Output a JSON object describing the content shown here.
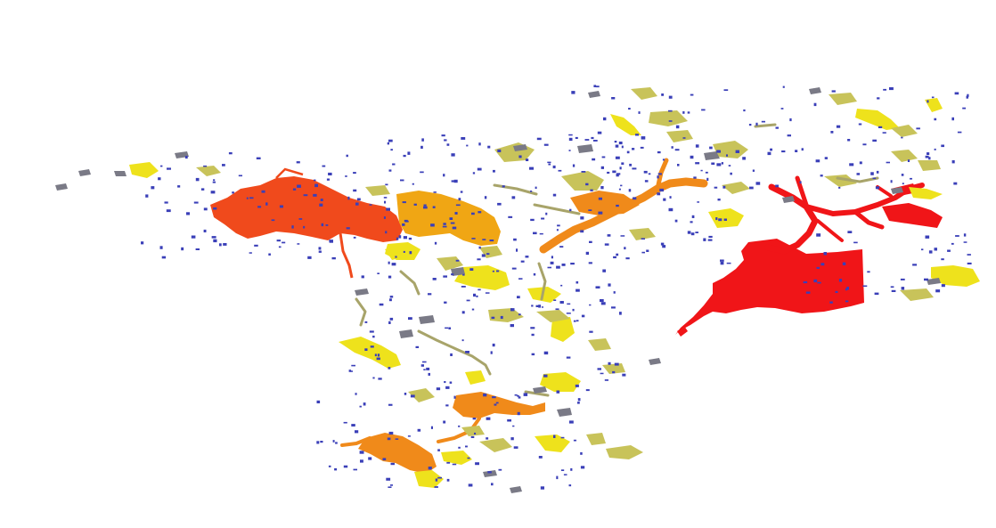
{
  "map": {
    "legend_colors": {
      "largest": "#f01518",
      "large": "#f04a1c",
      "medium_large": "#f08a1a",
      "medium": "#f0a614",
      "medium_small": "#eee21c",
      "small": "#c8c35a",
      "smaller": "#a8a46a",
      "tiny": "#7a7a86",
      "dot": "#3a3fb8"
    },
    "features": [
      {
        "name": "red-large-region",
        "class": "largest"
      },
      {
        "name": "red-channel-network",
        "class": "largest"
      },
      {
        "name": "orange-red-west-region",
        "class": "large"
      },
      {
        "name": "orange-central-north-region",
        "class": "medium_large"
      },
      {
        "name": "orange-south-region",
        "class": "medium_large"
      },
      {
        "name": "orange-south-central-region",
        "class": "medium_large"
      },
      {
        "name": "amber-central-region",
        "class": "medium"
      },
      {
        "name": "yellow-patches",
        "class": "medium_small"
      },
      {
        "name": "olive-patches",
        "class": "small"
      },
      {
        "name": "grey-patches",
        "class": "tiny"
      },
      {
        "name": "blue-dots",
        "class": "dot"
      }
    ]
  }
}
